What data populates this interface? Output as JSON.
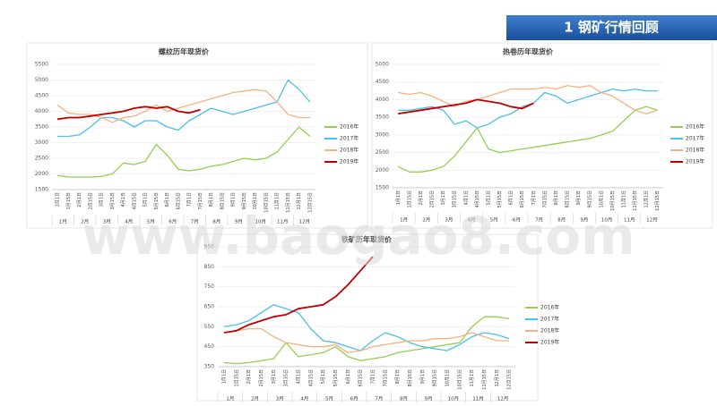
{
  "header": {
    "title": "1 钢矿行情回顾"
  },
  "watermark": "www.baogao8.com",
  "chart_data": [
    {
      "type": "line",
      "title": "螺纹历年现货价",
      "categories": [
        "1月1日",
        "1月15日",
        "2月1日",
        "2月15日",
        "3月1日",
        "3月15日",
        "4月1日",
        "4月15日",
        "5月1日",
        "5月15日",
        "6月1日",
        "6月15日",
        "7月1日",
        "7月15日",
        "8月1日",
        "8月15日",
        "9月1日",
        "9月15日",
        "10月1日",
        "10月15日",
        "11月1日",
        "11月15日",
        "12月1日",
        "12月15日"
      ],
      "months": [
        "1月",
        "2月",
        "3月",
        "4月",
        "5月",
        "6月",
        "7月",
        "8月",
        "9月",
        "10月",
        "11月",
        "12月"
      ],
      "ylim": [
        1500,
        5500
      ],
      "yticks": [
        1500,
        2000,
        2500,
        3000,
        3500,
        4000,
        4500,
        5000,
        5500
      ],
      "grid": true,
      "legend": "right",
      "series": [
        {
          "name": "2016年",
          "color": "#92d050",
          "values": [
            1950,
            1900,
            1900,
            1900,
            1920,
            2000,
            2350,
            2300,
            2400,
            2950,
            2600,
            2150,
            2100,
            2150,
            2250,
            2300,
            2400,
            2500,
            2450,
            2500,
            2700,
            3100,
            3500,
            3200
          ]
        },
        {
          "name": "2017年",
          "color": "#4bc0e8",
          "values": [
            3200,
            3200,
            3250,
            3500,
            3800,
            3800,
            3700,
            3500,
            3700,
            3700,
            3500,
            3400,
            3700,
            3900,
            4100,
            4000,
            3900,
            4000,
            4100,
            4200,
            4300,
            5000,
            4700,
            4300
          ]
        },
        {
          "name": "2018年",
          "color": "#f4b183",
          "values": [
            4200,
            3950,
            3900,
            3900,
            3800,
            3650,
            3800,
            3850,
            4000,
            4200,
            4000,
            4100,
            4200,
            4300,
            4400,
            4500,
            4600,
            4650,
            4700,
            4650,
            4300,
            3900,
            3800,
            3800
          ]
        },
        {
          "name": "2019年",
          "color": "#c00000",
          "values": [
            3750,
            3800,
            3800,
            3850,
            3900,
            3950,
            4000,
            4100,
            4150,
            4100,
            4150,
            4000,
            3950,
            4050,
            null,
            null,
            null,
            null,
            null,
            null,
            null,
            null,
            null,
            null
          ]
        }
      ]
    },
    {
      "type": "line",
      "title": "热卷历年现货价",
      "categories": [
        "1月1日",
        "1月15日",
        "2月1日",
        "2月15日",
        "3月1日",
        "3月15日",
        "4月1日",
        "4月15日",
        "5月1日",
        "5月15日",
        "6月1日",
        "6月15日",
        "7月1日",
        "7月15日",
        "8月1日",
        "8月15日",
        "9月1日",
        "9月15日",
        "10月1日",
        "10月15日",
        "11月1日",
        "11月15日",
        "12月1日",
        "12月15日"
      ],
      "months": [
        "1月",
        "2月",
        "3月",
        "4月",
        "5月",
        "6月",
        "7月",
        "8月",
        "9月",
        "10月",
        "11月",
        "12月"
      ],
      "ylim": [
        1500,
        5000
      ],
      "yticks": [
        1500,
        2000,
        2500,
        3000,
        3500,
        4000,
        4500,
        5000
      ],
      "grid": true,
      "legend": "right",
      "series": [
        {
          "name": "2016年",
          "color": "#92d050",
          "values": [
            2100,
            1950,
            1950,
            2000,
            2100,
            2400,
            2800,
            3200,
            2600,
            2500,
            2550,
            2600,
            2650,
            2700,
            2750,
            2800,
            2850,
            2900,
            3000,
            3100,
            3400,
            3700,
            3800,
            3700
          ]
        },
        {
          "name": "2017年",
          "color": "#4bc0e8",
          "values": [
            3700,
            3700,
            3750,
            3800,
            3700,
            3300,
            3400,
            3200,
            3300,
            3500,
            3600,
            3800,
            3900,
            4200,
            4100,
            3900,
            4000,
            4100,
            4200,
            4300,
            4250,
            4300,
            4250,
            4250
          ]
        },
        {
          "name": "2018年",
          "color": "#f4b183",
          "values": [
            4200,
            4150,
            4200,
            4100,
            3950,
            3800,
            3950,
            4000,
            4100,
            4200,
            4300,
            4300,
            4300,
            4350,
            4300,
            4400,
            4350,
            4400,
            4200,
            4100,
            3900,
            3700,
            3600,
            3700
          ]
        },
        {
          "name": "2019年",
          "color": "#c00000",
          "values": [
            3600,
            3650,
            3700,
            3750,
            3800,
            3850,
            3900,
            4000,
            3950,
            3900,
            3800,
            3750,
            3900,
            null,
            null,
            null,
            null,
            null,
            null,
            null,
            null,
            null,
            null,
            null
          ]
        }
      ]
    },
    {
      "type": "line",
      "title": "铁矿历年现货价",
      "categories": [
        "1月1日",
        "1月15日",
        "2月1日",
        "2月15日",
        "3月1日",
        "3月15日",
        "4月1日",
        "4月15日",
        "5月1日",
        "5月15日",
        "6月1日",
        "6月15日",
        "7月1日",
        "7月15日",
        "8月1日",
        "8月15日",
        "9月1日",
        "9月15日",
        "10月1日",
        "10月15日",
        "11月1日",
        "11月15日",
        "12月1日",
        "12月15日"
      ],
      "months": [
        "1月",
        "2月",
        "3月",
        "4月",
        "5月",
        "6月",
        "7月",
        "8月",
        "9月",
        "10月",
        "11月",
        "12月"
      ],
      "ylim": [
        350,
        950
      ],
      "yticks": [
        350,
        450,
        550,
        650,
        750,
        850,
        950
      ],
      "grid": true,
      "legend": "right",
      "series": [
        {
          "name": "2016年",
          "color": "#92d050",
          "values": [
            370,
            365,
            370,
            380,
            390,
            470,
            400,
            410,
            420,
            450,
            400,
            380,
            390,
            400,
            420,
            430,
            440,
            450,
            460,
            470,
            550,
            600,
            600,
            590
          ]
        },
        {
          "name": "2017年",
          "color": "#4bc0e8",
          "values": [
            550,
            560,
            580,
            620,
            660,
            640,
            620,
            540,
            480,
            470,
            450,
            430,
            480,
            520,
            500,
            470,
            450,
            440,
            430,
            460,
            500,
            520,
            510,
            490
          ]
        },
        {
          "name": "2018年",
          "color": "#f4b183",
          "values": [
            520,
            530,
            540,
            540,
            500,
            470,
            460,
            450,
            450,
            460,
            420,
            430,
            450,
            460,
            470,
            480,
            480,
            490,
            490,
            500,
            520,
            500,
            480,
            480
          ]
        },
        {
          "name": "2019年",
          "color": "#c00000",
          "values": [
            520,
            530,
            560,
            580,
            600,
            610,
            640,
            650,
            660,
            700,
            760,
            830,
            900,
            null,
            null,
            null,
            null,
            null,
            null,
            null,
            null,
            null,
            null,
            null
          ]
        }
      ]
    }
  ]
}
